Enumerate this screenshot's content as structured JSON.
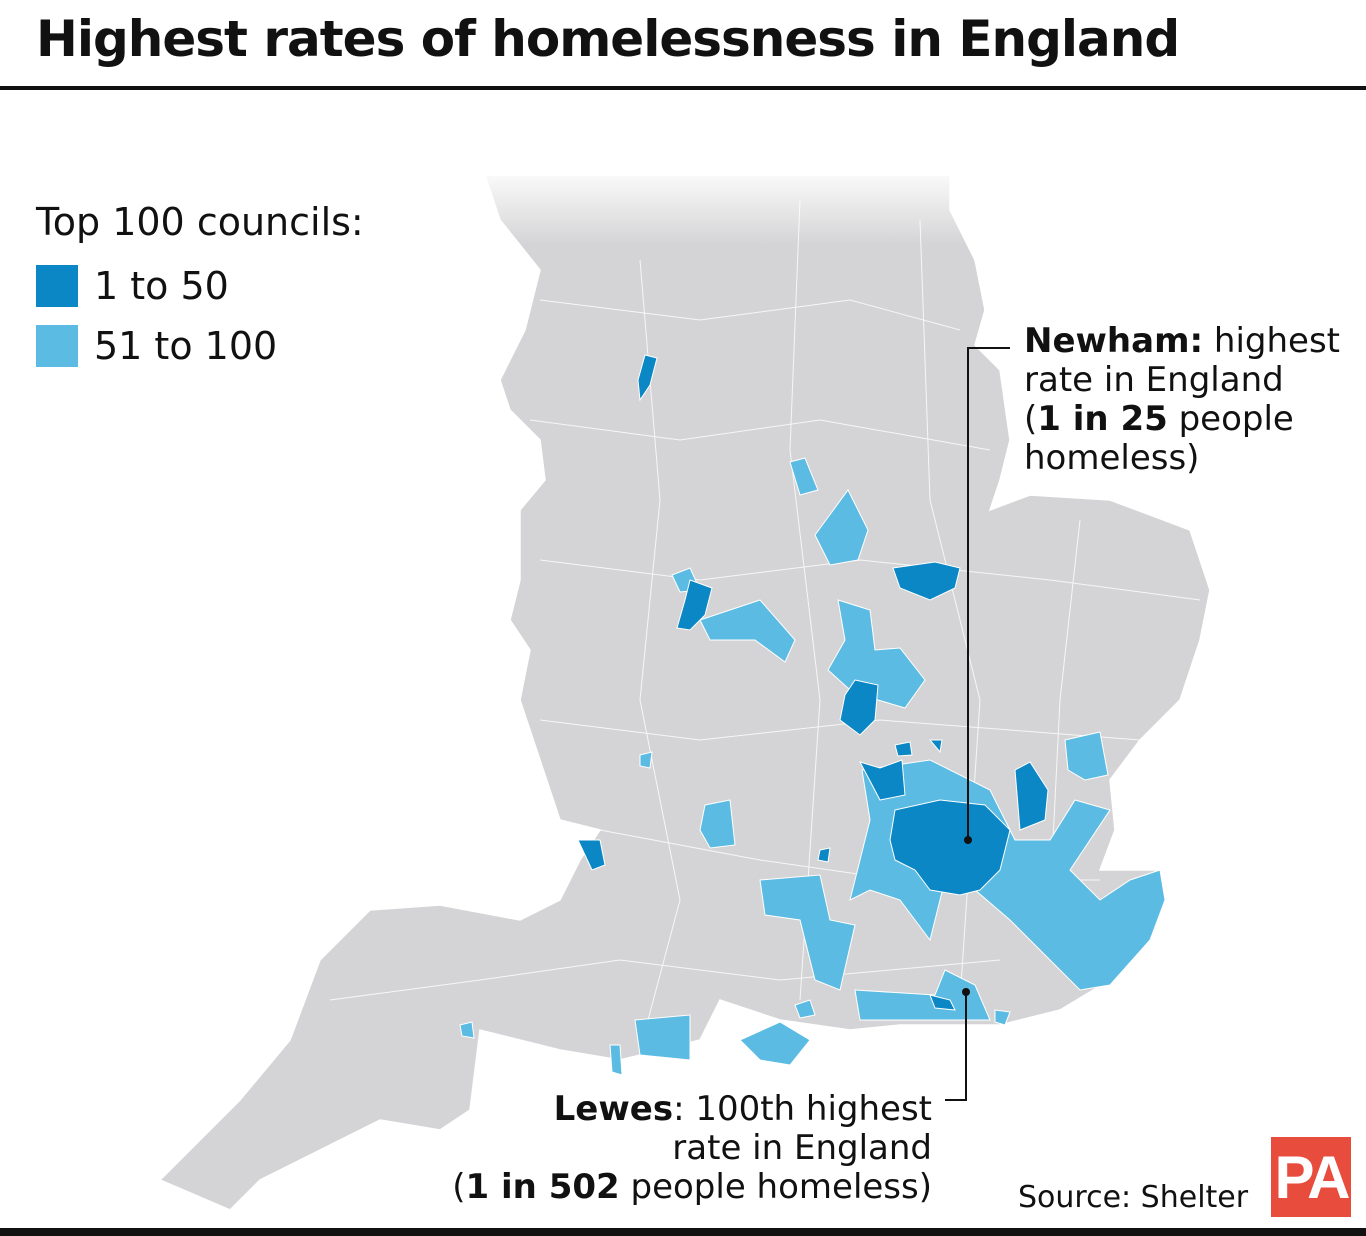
{
  "title": "Highest rates of homelessness in England",
  "legend": {
    "title": "Top 100 councils:",
    "items": [
      {
        "label": "1 to 50",
        "color": "#0a87c4"
      },
      {
        "label": "51 to 100",
        "color": "#5bbbe3"
      }
    ]
  },
  "colors": {
    "land": "#d4d4d6",
    "borders": "#ffffff",
    "top50": "#0a87c4",
    "top100": "#5bbbe3",
    "brand": "#e84c3d"
  },
  "annotations": {
    "newham": {
      "name": "Newham:",
      "line1": " highest",
      "line2": "rate in England",
      "open": "(",
      "stat": "1 in 25",
      "rest": " people",
      "line4": "homeless)"
    },
    "lewes": {
      "name": "Lewes",
      "line1": ": 100th highest",
      "line2": "rate in England",
      "open": "(",
      "stat": "1 in 502",
      "rest": " people homeless)"
    }
  },
  "source": "Source: Shelter",
  "logo": "PA"
}
